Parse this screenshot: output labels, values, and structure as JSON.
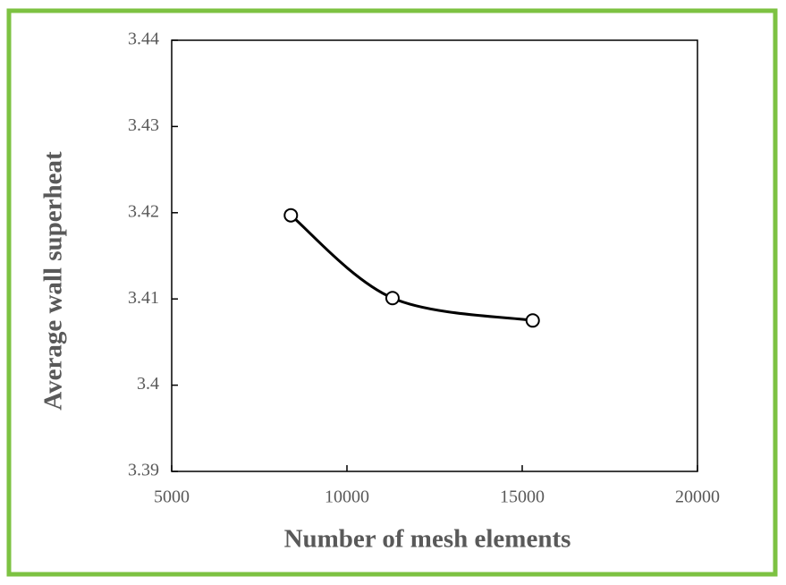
{
  "chart_data": {
    "type": "line",
    "xlabel": "Number of mesh elements",
    "ylabel": "Average wall superheat",
    "x": [
      8400,
      11300,
      15300
    ],
    "values": [
      3.4197,
      3.4101,
      3.4075
    ],
    "color": "#000000",
    "xlim": [
      5000,
      20000
    ],
    "xticks": [
      5000,
      10000,
      15000,
      20000
    ],
    "ylim": [
      3.39,
      3.44
    ],
    "yticks": [
      3.39,
      3.4,
      3.41,
      3.42,
      3.43,
      3.44
    ]
  }
}
